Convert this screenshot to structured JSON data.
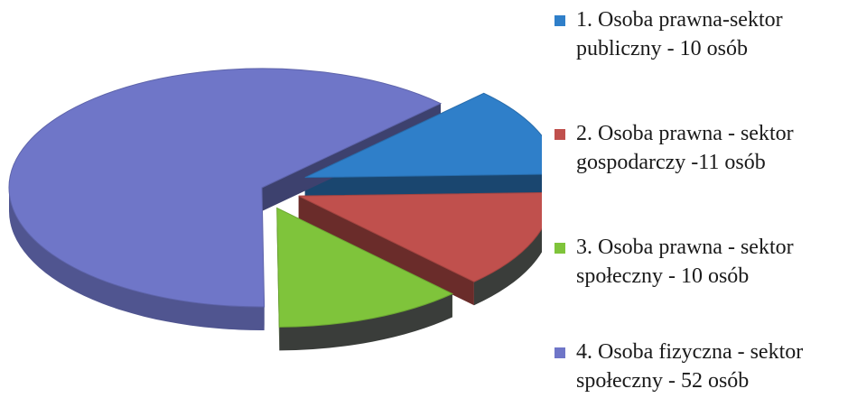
{
  "chart_data": {
    "type": "pie",
    "title": "",
    "categories": [
      "1. Osoba prawna-sektor publiczny - 10 osób",
      "2. Osoba prawna - sektor gospodarczy -11 osób",
      "3. Osoba prawna - sektor społeczny - 10 osób",
      "4. Osoba fizyczna - sektor społeczny - 52 osób"
    ],
    "values": [
      10,
      11,
      10,
      52
    ],
    "colors": [
      "#2f7fc9",
      "#c0504d",
      "#7fc43b",
      "#6f76c8"
    ],
    "legend_position": "right",
    "exploded": true,
    "three_d": true
  },
  "legend": {
    "items": [
      {
        "line1": "1. Osoba prawna-sektor",
        "line2": "publiczny - 10 osób",
        "color": "#2f7fc9"
      },
      {
        "line1": "2. Osoba prawna - sektor",
        "line2": "gospodarczy -11 osób",
        "color": "#c0504d"
      },
      {
        "line1": "3. Osoba prawna - sektor",
        "line2": "społeczny - 10 osób",
        "color": "#7fc43b"
      },
      {
        "line1": "4. Osoba fizyczna - sektor",
        "line2": "społeczny - 52 osób",
        "color": "#6f76c8"
      }
    ]
  }
}
